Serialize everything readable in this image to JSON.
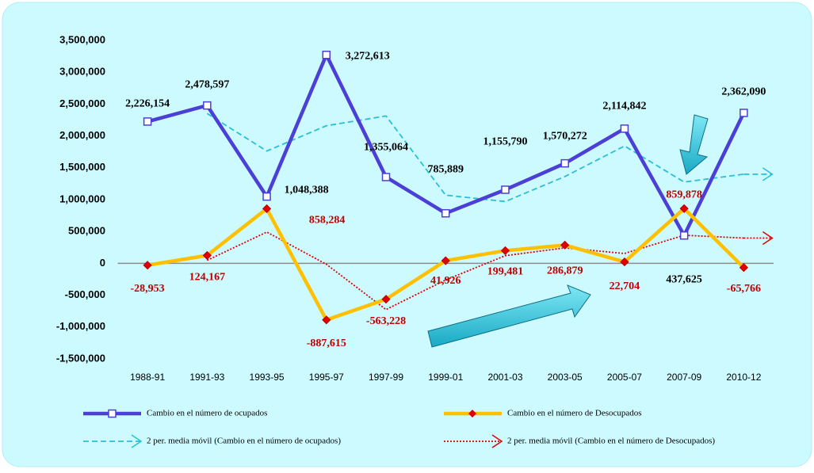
{
  "chart_data": {
    "type": "line",
    "categories": [
      "1988-91",
      "1991-93",
      "1993-95",
      "1995-97",
      "1997-99",
      "1999-01",
      "2001-03",
      "2003-05",
      "2005-07",
      "2007-09",
      "2010-12"
    ],
    "series": [
      {
        "name": "Cambio en el número de ocupados",
        "color": "#4b3fd6",
        "label_color": "#000000",
        "marker": "square",
        "values": [
          2226154,
          2478597,
          1048388,
          3272613,
          1355064,
          785889,
          1155790,
          1570272,
          2114842,
          437625,
          2362090
        ],
        "value_labels": [
          "2,226,154",
          "2,478,597",
          "1,048,388",
          "3,272,613",
          "1,355,064",
          "785,889",
          "1,155,790",
          "1,570,272",
          "2,114,842",
          "437,625",
          "2,362,090"
        ]
      },
      {
        "name": "Cambio en el número de Desocupados",
        "color": "#ffc000",
        "label_color": "#c00000",
        "marker": "diamond",
        "values": [
          -28953,
          124167,
          858284,
          -887615,
          -563228,
          41926,
          199481,
          286879,
          22704,
          859878,
          -65766
        ],
        "value_labels": [
          "-28,953",
          "124,167",
          "858,284",
          "-887,615",
          "-563,228",
          "41,926",
          "199,481",
          "286,879",
          "22,704",
          "859,878",
          "-65,766"
        ]
      },
      {
        "name": "2 per. media móvil (Cambio en el número de ocupados)",
        "color": "#2bbfd6",
        "dash": "dashed",
        "values": [
          null,
          2352376,
          1763493,
          2160501,
          2313839,
          1070477,
          970840,
          1363031,
          1842557,
          1276234,
          1399858
        ]
      },
      {
        "name": "2 per. media móvil (Cambio en el número de Desocupados)",
        "color": "#e00000",
        "dash": "dotted",
        "values": [
          null,
          47607,
          491226,
          -14666,
          -725422,
          -260651,
          120704,
          243180,
          154792,
          441291,
          397056
        ]
      }
    ],
    "ylim": [
      -1500000,
      3500000
    ],
    "yticks": [
      {
        "value": -1500000,
        "label": "-1,500,000"
      },
      {
        "value": -1000000,
        "label": "-1,000,000"
      },
      {
        "value": -500000,
        "label": "-500,000"
      },
      0,
      {
        "value": 500000,
        "label": "500,000"
      },
      {
        "value": 1000000,
        "label": "1,000,000"
      },
      {
        "value": 1500000,
        "label": "1,500,000"
      },
      {
        "value": 2000000,
        "label": "2,000,000"
      },
      {
        "value": 2500000,
        "label": "2,500,000"
      },
      {
        "value": 3000000,
        "label": "3,000,000"
      },
      {
        "value": 3500000,
        "label": "3,500,000"
      }
    ],
    "zero_line": true
  }
}
